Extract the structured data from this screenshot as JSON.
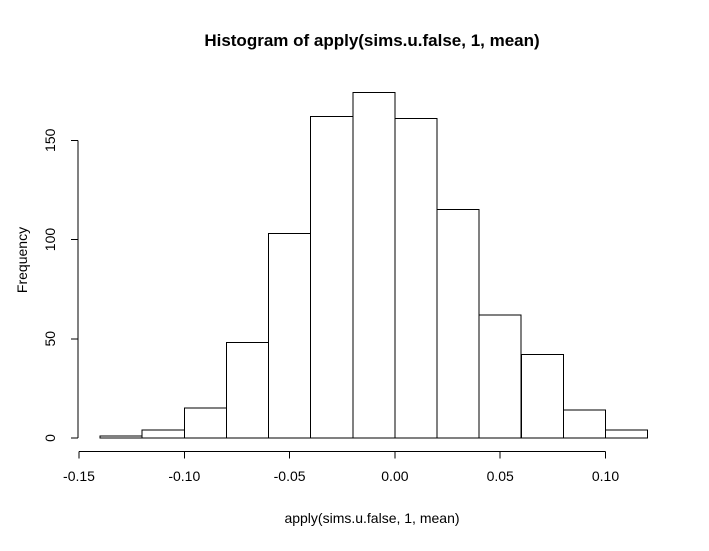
{
  "window": {
    "background": "#ffffff"
  },
  "chart_data": {
    "type": "bar",
    "subtype": "histogram",
    "title": "Histogram of apply(sims.u.false, 1, mean)",
    "xlabel": "apply(sims.u.false, 1, mean)",
    "ylabel": "Frequency",
    "bin_breaks": [
      -0.14,
      -0.12,
      -0.1,
      -0.08,
      -0.06,
      -0.04,
      -0.02,
      0.0,
      0.02,
      0.04,
      0.06,
      0.08,
      0.1,
      0.12
    ],
    "counts": [
      1,
      4,
      15,
      48,
      103,
      162,
      174,
      161,
      115,
      62,
      42,
      14,
      4
    ],
    "x_ticks": {
      "values": [
        -0.15,
        -0.1,
        -0.05,
        0.0,
        0.05,
        0.1
      ],
      "labels": [
        "-0.15",
        "-0.10",
        "-0.05",
        "0.00",
        "0.05",
        "0.10"
      ]
    },
    "y_ticks": {
      "values": [
        0,
        50,
        100,
        150
      ],
      "labels": [
        "0",
        "50",
        "100",
        "150"
      ]
    },
    "xlim": [
      -0.15,
      0.12
    ],
    "ylim": [
      0,
      174
    ],
    "grid": false,
    "legend": false,
    "bar_fill": "#ffffff",
    "bar_stroke": "#000000",
    "axis_color": "#000000"
  }
}
